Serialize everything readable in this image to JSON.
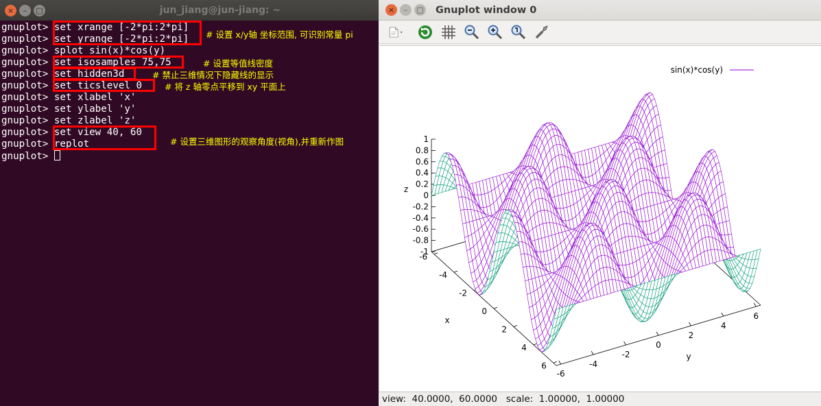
{
  "terminal": {
    "title": "jun_jiang@jun-jiang: ~",
    "prompt": "gnuplot> ",
    "lines": [
      {
        "cmd": "set xrange [-2*pi:2*pi]"
      },
      {
        "cmd": "set yrange [-2*pi:2*pi]"
      },
      {
        "cmd": "splot sin(x)*cos(y)"
      },
      {
        "cmd": "set isosamples 75,75"
      },
      {
        "cmd": "set hidden3d"
      },
      {
        "cmd": "set ticslevel 0"
      },
      {
        "cmd": "set xlabel 'x'"
      },
      {
        "cmd": "set ylabel 'y'"
      },
      {
        "cmd": "set zlabel 'z'"
      },
      {
        "cmd": "set view 40, 60"
      },
      {
        "cmd": "replot"
      },
      {
        "cmd": ""
      }
    ],
    "annotations": {
      "range": "# 设置 x/y轴 坐标范围, 可识别常量 pi",
      "isosamples": "# 设置等值线密度",
      "hidden3d": "# 禁止三维情况下隐藏线的显示",
      "ticslevel": "# 将 z 轴零点平移到 xy 平面上",
      "view": "# 设置三维图形的观察角度(视角),并重新作图"
    }
  },
  "gnuplot": {
    "title": "Gnuplot window 0",
    "toolbar": [
      "export-icon",
      "replot-icon",
      "grid-icon",
      "zoom-out-icon",
      "zoom-in-icon",
      "zoom-fit-icon",
      "settings-icon"
    ],
    "status": "view:  40.0000,  60.0000   scale:  1.00000,  1.00000"
  },
  "chart_data": {
    "type": "surface",
    "function": "sin(x)*cos(y)",
    "legend": "sin(x)*cos(y)",
    "legend_position": "top-right",
    "xlabel": "x",
    "ylabel": "y",
    "zlabel": "z",
    "xrange": [
      -6.283,
      6.283
    ],
    "yrange": [
      -6.283,
      6.283
    ],
    "zrange": [
      -1,
      1
    ],
    "x_ticks": [
      "-6",
      "-4",
      "-2",
      "0",
      "2",
      "4",
      "6"
    ],
    "y_ticks": [
      "-6",
      "-4",
      "-2",
      "0",
      "2",
      "4",
      "6"
    ],
    "z_ticks": [
      "1",
      "0.8",
      "0.6",
      "0.4",
      "0.2",
      "0",
      "-0.2",
      "-0.4",
      "-0.6",
      "-0.8",
      "-1"
    ],
    "view": [
      40,
      60
    ],
    "isosamples": [
      75,
      75
    ],
    "hidden3d": true,
    "top_color": "#9400d3",
    "bottom_color": "#009e73"
  }
}
